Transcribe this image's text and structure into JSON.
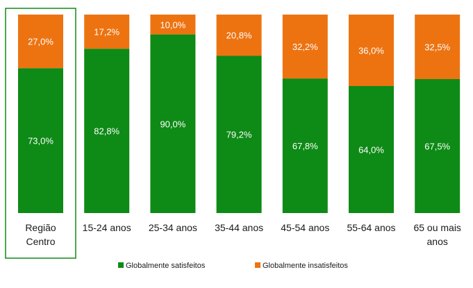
{
  "chart_data": {
    "type": "bar",
    "stacked": true,
    "percent": true,
    "categories": [
      [
        "Região",
        "Centro"
      ],
      [
        "15-24 anos"
      ],
      [
        "25-34 anos"
      ],
      [
        "35-44 anos"
      ],
      [
        "45-54 anos"
      ],
      [
        "55-64 anos"
      ],
      [
        "65 ou mais",
        "anos"
      ]
    ],
    "highlighted_category_index": 0,
    "series": [
      {
        "name": "Globalmente satisfeitos",
        "color": "#0e8a16",
        "values": [
          73.0,
          82.8,
          90.0,
          79.2,
          67.8,
          64.0,
          67.5
        ],
        "labels": [
          "73,0%",
          "82,8%",
          "90,0%",
          "79,2%",
          "67,8%",
          "64,0%",
          "67,5%"
        ]
      },
      {
        "name": "Globalmente insatisfeitos",
        "color": "#ed7311",
        "values": [
          27.0,
          17.2,
          10.0,
          20.8,
          32.2,
          36.0,
          32.5
        ],
        "labels": [
          "27,0%",
          "17,2%",
          "10,0%",
          "20,8%",
          "32,2%",
          "36,0%",
          "32,5%"
        ]
      }
    ],
    "ylim": [
      0,
      100
    ],
    "grid": false,
    "legend": "bottom"
  },
  "colors": {
    "highlight_border": "#0e8a16"
  }
}
